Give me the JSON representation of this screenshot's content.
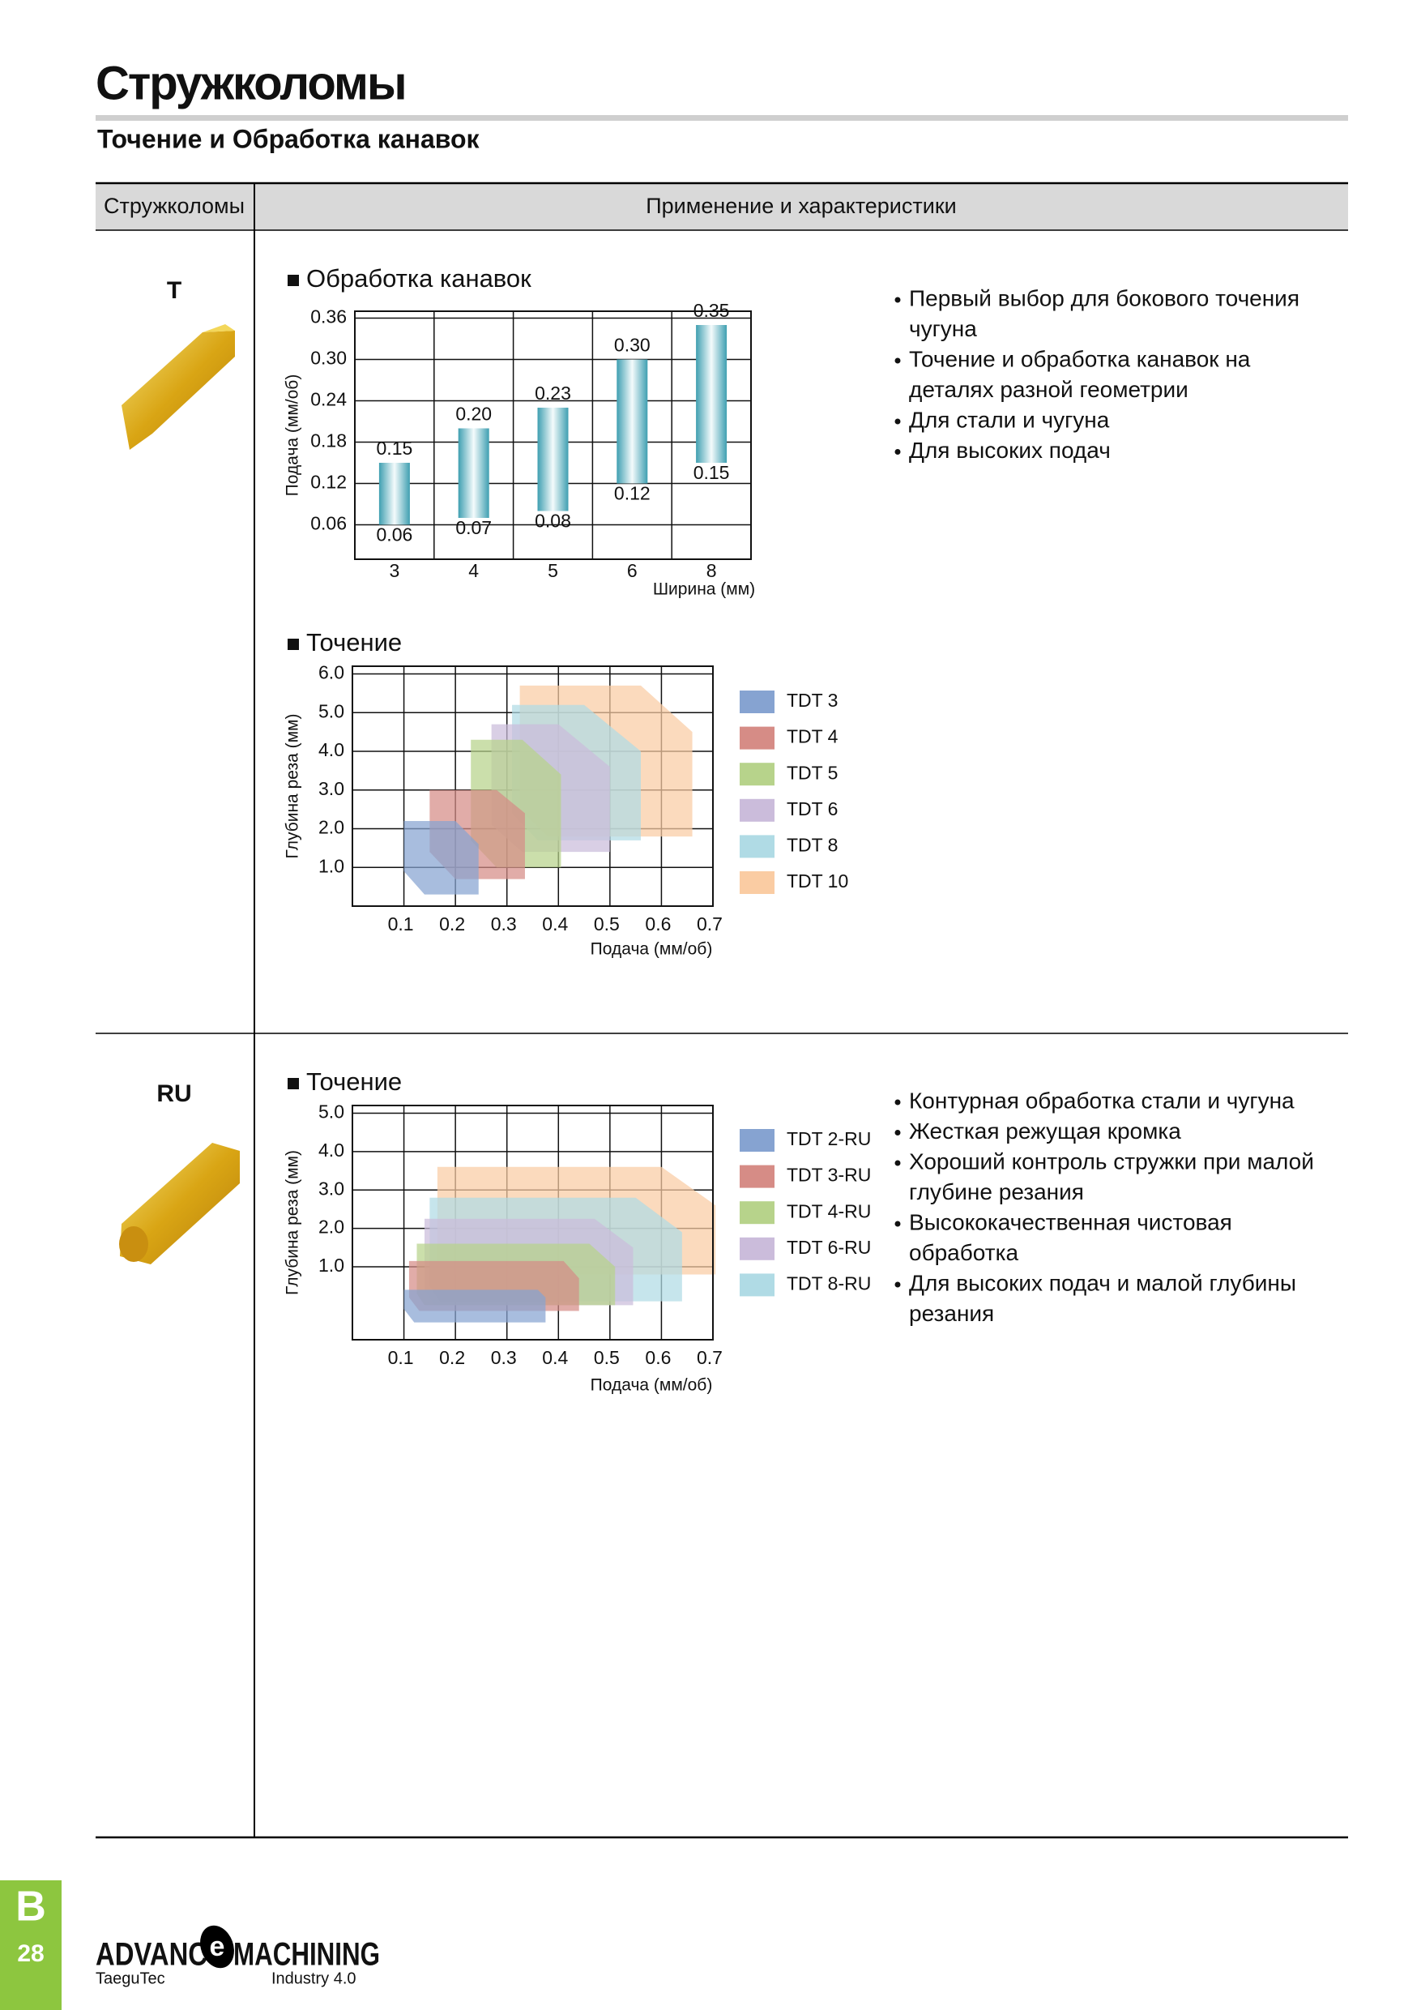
{
  "header": {
    "title": "Стружколомы",
    "subtitle": "Точение и Обработка канавок"
  },
  "table": {
    "columns": [
      "Стружколомы",
      "Применение и характеристики"
    ],
    "rows": [
      {
        "label": "T",
        "features": [
          [
            "Первый выбор для бокового точения",
            "чугуна"
          ],
          [
            "Точение и обработка канавок на",
            "деталях разной геометрии"
          ],
          [
            "Для стали и чугуна"
          ],
          [
            "Для высоких подач"
          ]
        ]
      },
      {
        "label": "RU",
        "features": [
          [
            "Контурная обработка стали и чугуна"
          ],
          [
            "Жесткая режущая кромка"
          ],
          [
            "Хороший контроль стружки при малой",
            "глубине резания"
          ],
          [
            "Высококачественная чистовая",
            "обработка"
          ],
          [
            "Для высоких подач и малой глубины",
            "резания"
          ]
        ]
      }
    ]
  },
  "chart_data": [
    {
      "type": "bar",
      "title": "Обработка канавок",
      "y_label": "Подача (мм/об)",
      "x_label": "Ширина (мм)",
      "categories": [
        "3",
        "4",
        "5",
        "6",
        "8"
      ],
      "color": "#3f9fb1",
      "series": [
        {
          "values": [
            0.06,
            0.07,
            0.08,
            0.12,
            0.15
          ]
        },
        {
          "values": [
            0.15,
            0.2,
            0.23,
            0.3,
            0.35
          ],
          "value_labels": [
            "0.15",
            "0.20",
            "0.23",
            "0.30",
            "0.35"
          ]
        }
      ],
      "ylim": [
        0.01,
        0.37
      ],
      "yticks": [
        0.06,
        0.12,
        0.18,
        {
          "value": 0.3,
          "label": "0.30"
        },
        0.24,
        0.36
      ],
      "grid": true
    },
    {
      "type": "region",
      "title": "Точение",
      "y_label": "Глубина реза (мм)",
      "x_label": "Подача (мм/об)",
      "xlim": [
        0,
        0.7
      ],
      "xticks": [
        0.1,
        0.2,
        0.3,
        0.4,
        0.5,
        0.6,
        0.7
      ],
      "ylim": [
        0,
        6.2
      ],
      "yticks": [
        {
          "value": 1,
          "label": "1.0"
        },
        {
          "value": 2,
          "label": "2.0"
        },
        {
          "value": 3,
          "label": "3.0"
        },
        {
          "value": 4,
          "label": "4.0"
        },
        {
          "value": 5,
          "label": "5.0"
        },
        {
          "value": 6,
          "label": "6.0"
        }
      ],
      "grid": true,
      "series": [
        {
          "name": "TDT 3",
          "color": "#86a3d1",
          "points": [
            [
              0.1,
              2.2
            ],
            [
              0.2,
              2.2
            ],
            [
              0.245,
              1.6
            ],
            [
              0.245,
              0.3
            ],
            [
              0.14,
              0.3
            ],
            [
              0.1,
              0.9
            ]
          ]
        },
        {
          "name": "TDT 4",
          "color": "#d68c86",
          "points": [
            [
              0.15,
              3.0
            ],
            [
              0.28,
              3.0
            ],
            [
              0.335,
              2.4
            ],
            [
              0.335,
              0.7
            ],
            [
              0.2,
              0.7
            ],
            [
              0.15,
              1.4
            ]
          ]
        },
        {
          "name": "TDT 5",
          "color": "#b7d38b",
          "points": [
            [
              0.23,
              4.3
            ],
            [
              0.33,
              4.3
            ],
            [
              0.405,
              3.4
            ],
            [
              0.405,
              1.0
            ],
            [
              0.28,
              1.0
            ],
            [
              0.23,
              1.7
            ]
          ]
        },
        {
          "name": "TDT 6",
          "color": "#cbbcdb",
          "points": [
            [
              0.27,
              4.7
            ],
            [
              0.4,
              4.7
            ],
            [
              0.5,
              3.6
            ],
            [
              0.5,
              1.4
            ],
            [
              0.33,
              1.4
            ],
            [
              0.27,
              2.1
            ]
          ]
        },
        {
          "name": "TDT 8",
          "color": "#b0dbe5",
          "points": [
            [
              0.31,
              5.2
            ],
            [
              0.45,
              5.2
            ],
            [
              0.56,
              4.0
            ],
            [
              0.56,
              1.7
            ],
            [
              0.36,
              1.7
            ],
            [
              0.31,
              2.4
            ]
          ]
        },
        {
          "name": "TDT 10",
          "color": "#facca3",
          "points": [
            [
              0.325,
              5.7
            ],
            [
              0.56,
              5.7
            ],
            [
              0.66,
              4.5
            ],
            [
              0.66,
              1.8
            ],
            [
              0.38,
              1.8
            ],
            [
              0.325,
              2.5
            ]
          ]
        }
      ]
    },
    {
      "type": "region",
      "title": "Точение",
      "y_label": "Глубина реза (мм)",
      "x_label": "Подача (мм/об)",
      "xlim": [
        0,
        0.7
      ],
      "xticks": [
        0.1,
        0.2,
        0.3,
        0.4,
        0.5,
        0.6,
        0.7
      ],
      "ylim": [
        -0.9,
        5.2
      ],
      "yticks": [
        {
          "value": 1,
          "label": "1.0"
        },
        {
          "value": 2,
          "label": "2.0"
        },
        {
          "value": 3,
          "label": "3.0"
        },
        {
          "value": 4,
          "label": "4.0"
        },
        {
          "value": 5,
          "label": "5.0"
        }
      ],
      "grid": true,
      "series": [
        {
          "name": "TDT 2-RU",
          "color": "#86a3d1",
          "points": [
            [
              0.1,
              0.4
            ],
            [
              0.36,
              0.4
            ],
            [
              0.375,
              0.2
            ],
            [
              0.375,
              -0.45
            ],
            [
              0.12,
              -0.45
            ],
            [
              0.1,
              -0.1
            ]
          ]
        },
        {
          "name": "TDT 3-RU",
          "color": "#d68c86",
          "points": [
            [
              0.11,
              1.15
            ],
            [
              0.41,
              1.15
            ],
            [
              0.44,
              0.7
            ],
            [
              0.44,
              -0.15
            ],
            [
              0.13,
              -0.15
            ],
            [
              0.11,
              0.2
            ]
          ]
        },
        {
          "name": "TDT 4-RU",
          "color": "#b7d38b",
          "points": [
            [
              0.125,
              1.6
            ],
            [
              0.46,
              1.6
            ],
            [
              0.51,
              1.0
            ],
            [
              0.51,
              0.0
            ],
            [
              0.14,
              0.0
            ],
            [
              0.125,
              0.3
            ]
          ]
        },
        {
          "name": "TDT 6-RU",
          "color": "#cbbcdb",
          "points": [
            [
              0.14,
              2.25
            ],
            [
              0.47,
              2.25
            ],
            [
              0.545,
              1.5
            ],
            [
              0.545,
              0.0
            ],
            [
              0.16,
              0.0
            ],
            [
              0.14,
              0.4
            ]
          ]
        },
        {
          "name": "TDT 8-RU",
          "color": "#b0dbe5",
          "points": [
            [
              0.15,
              2.8
            ],
            [
              0.55,
              2.8
            ],
            [
              0.64,
              1.9
            ],
            [
              0.64,
              0.1
            ],
            [
              0.17,
              0.1
            ],
            [
              0.15,
              0.5
            ]
          ]
        },
        {
          "name": null,
          "color": "#facca3",
          "points": [
            [
              0.165,
              3.6
            ],
            [
              0.6,
              3.6
            ],
            [
              0.705,
              2.6
            ],
            [
              0.705,
              0.8
            ],
            [
              0.165,
              0.8
            ]
          ]
        }
      ]
    }
  ],
  "footer": {
    "section": "B",
    "page": "28",
    "logo_start": "ADVANC",
    "logo_mark": "e",
    "logo_end": "MACHINING",
    "brand": "TaeguTec",
    "tagline": "Industry 4.0"
  }
}
